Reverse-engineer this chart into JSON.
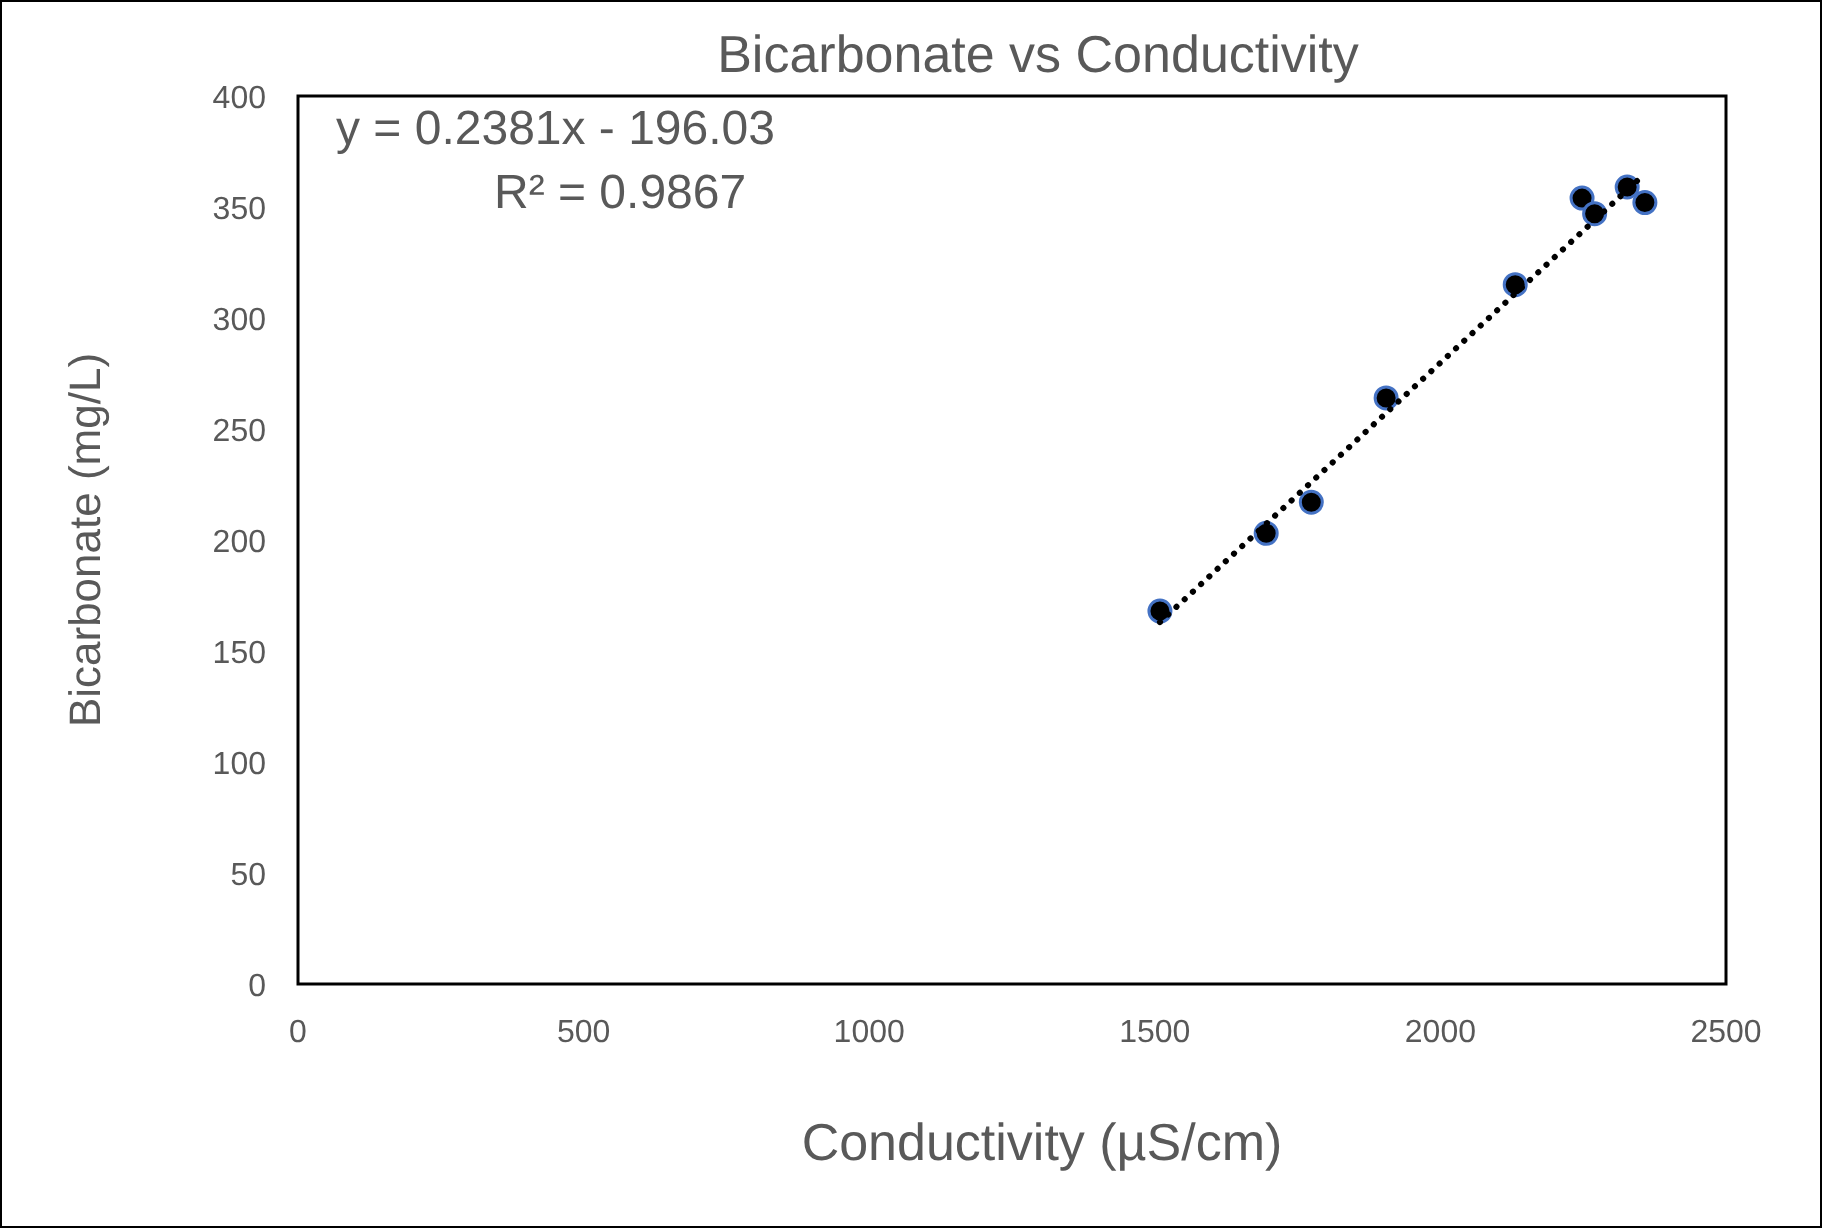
{
  "chart_data": {
    "type": "scatter",
    "title": "Bicarbonate vs Conductivity",
    "xlabel": "Conductivity (µS/cm)",
    "ylabel": "Bicarbonate (mg/L)",
    "annotations": [
      "y = 0.2381x - 196.03",
      "R² = 0.9867"
    ],
    "x": [
      1509,
      1695,
      1774,
      1905,
      2131,
      2248,
      2270,
      2327,
      2358
    ],
    "series": [
      {
        "color": "#000000",
        "values": [
          168,
          203,
          217,
          264,
          315,
          354,
          347,
          359,
          352
        ]
      },
      {
        "type": "line",
        "color": "#000000",
        "x": [
          1509,
          2358
        ],
        "values": [
          163,
          365
        ],
        "line_style": "dotted",
        "marker": "none"
      }
    ],
    "marker": "circle",
    "xlim": [
      0,
      2500
    ],
    "xticks": [
      0,
      500,
      1000,
      1500,
      2000,
      2500
    ],
    "ylim": [
      0,
      400
    ],
    "yticks": [
      0,
      50,
      100,
      150,
      200,
      250,
      300,
      350,
      400
    ],
    "grid": false
  }
}
